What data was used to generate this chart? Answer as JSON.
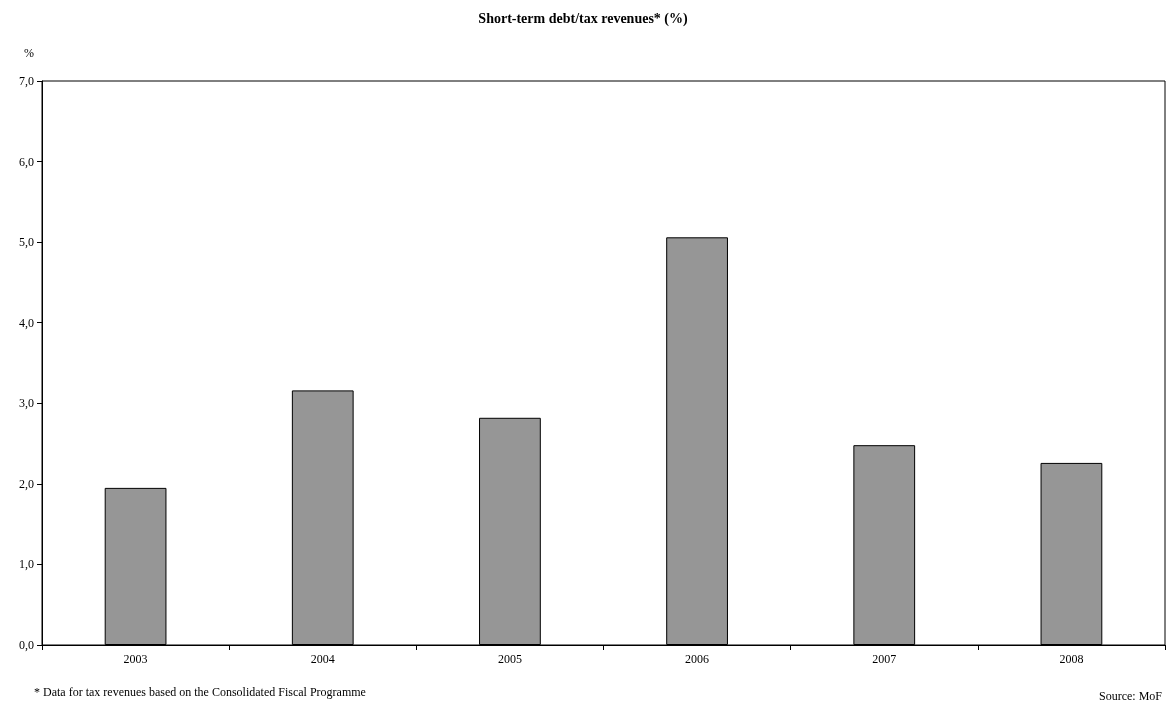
{
  "chart_data": {
    "type": "bar",
    "title": "Short-term debt/tax revenues* (%)",
    "ylabel": "%",
    "categories": [
      "2003",
      "2004",
      "2005",
      "2006",
      "2007",
      "2008"
    ],
    "values": [
      1.95,
      3.16,
      2.82,
      5.06,
      2.48,
      2.26
    ],
    "color": "#969696",
    "ylim": [
      0,
      7
    ],
    "yticks": [
      {
        "value": 0,
        "label": "0,0"
      },
      {
        "value": 1,
        "label": "1,0"
      },
      {
        "value": 2,
        "label": "2,0"
      },
      {
        "value": 3,
        "label": "3,0"
      },
      {
        "value": 4,
        "label": "4,0"
      },
      {
        "value": 5,
        "label": "5,0"
      },
      {
        "value": 6,
        "label": "6,0"
      },
      {
        "value": 7,
        "label": "7,0"
      }
    ],
    "grid": false,
    "annotations": [
      "* Data for tax revenues based on the Consolidated Fiscal Programme",
      "Source: MoF"
    ]
  }
}
